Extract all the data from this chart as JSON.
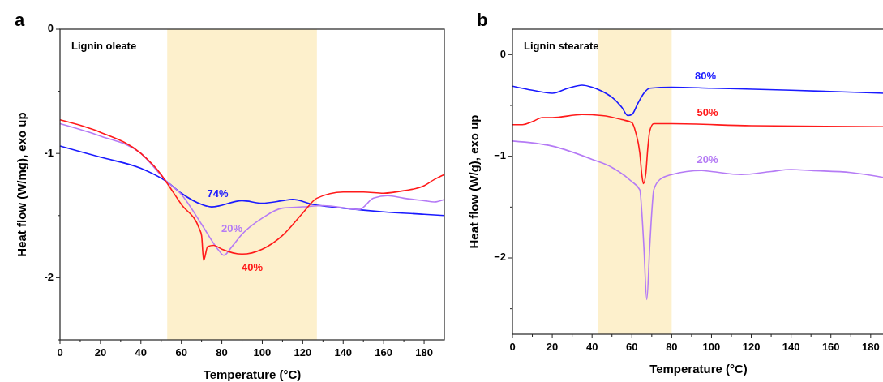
{
  "chart_data": [
    {
      "type": "line",
      "title": "Lignin oleate",
      "annotations": [
        "a"
      ],
      "xlabel": "Temperature (°C)",
      "ylabel": "Heat flow (W/mg), exo up",
      "xlim": [
        0,
        190
      ],
      "ylim": [
        -2.5,
        0
      ],
      "xticks": [
        0,
        {
          "value": 10,
          "label": null
        },
        20,
        {
          "value": 30,
          "label": null
        },
        40,
        {
          "value": 50,
          "label": null
        },
        60,
        {
          "value": 70,
          "label": null
        },
        80,
        {
          "value": 90,
          "label": null
        },
        100,
        {
          "value": 110,
          "label": null
        },
        120,
        {
          "value": 130,
          "label": null
        },
        140,
        {
          "value": 150,
          "label": null
        },
        160,
        {
          "value": 170,
          "label": null
        },
        180
      ],
      "yticks": [
        0,
        {
          "value": -0.5,
          "label": null
        },
        -1,
        {
          "value": -1.5,
          "label": null
        },
        -2,
        {
          "value": -2.5,
          "label": null
        }
      ],
      "bands": [
        {
          "axis": "x",
          "from": 53,
          "to": 127,
          "color": "#fdf0cc"
        }
      ],
      "series": [
        {
          "name": "74%",
          "color": "#1a1aff",
          "x": [
            0,
            20,
            40,
            53,
            60,
            70,
            75,
            90,
            100,
            110,
            115,
            125,
            140,
            160,
            180,
            190
          ],
          "values": [
            -0.94,
            -1.03,
            -1.12,
            -1.23,
            -1.32,
            -1.41,
            -1.43,
            -1.38,
            -1.4,
            -1.38,
            -1.37,
            -1.41,
            -1.44,
            -1.47,
            -1.49,
            -1.5
          ]
        },
        {
          "name": "20%",
          "color": "#b57bf5",
          "x": [
            0,
            20,
            40,
            53,
            60,
            70,
            78,
            81,
            85,
            90,
            100,
            110,
            120,
            130,
            148,
            155,
            162,
            170,
            180,
            185,
            190
          ],
          "values": [
            -0.76,
            -0.86,
            -1.0,
            -1.23,
            -1.33,
            -1.57,
            -1.77,
            -1.82,
            -1.75,
            -1.65,
            -1.52,
            -1.44,
            -1.43,
            -1.42,
            -1.45,
            -1.36,
            -1.34,
            -1.36,
            -1.38,
            -1.39,
            -1.37
          ]
        },
        {
          "name": "40%",
          "color": "#ff1a1a",
          "x": [
            0,
            20,
            40,
            50,
            53,
            60,
            69,
            70,
            71,
            73,
            76,
            80,
            90,
            100,
            110,
            120,
            127,
            140,
            150,
            160,
            170,
            180,
            185,
            190
          ],
          "values": [
            -0.73,
            -0.83,
            -1.0,
            -1.17,
            -1.24,
            -1.41,
            -1.61,
            -1.66,
            -1.86,
            -1.75,
            -1.74,
            -1.77,
            -1.81,
            -1.77,
            -1.66,
            -1.48,
            -1.36,
            -1.31,
            -1.31,
            -1.32,
            -1.3,
            -1.26,
            -1.21,
            -1.17
          ]
        }
      ]
    },
    {
      "type": "line",
      "title": "Lignin stearate",
      "annotations": [
        "b"
      ],
      "xlabel": "Temperature (°C)",
      "ylabel": "Heat flow (W/g), exo up",
      "xlim": [
        0,
        187
      ],
      "ylim": [
        -2.75,
        0.25
      ],
      "xticks": [
        0,
        {
          "value": 10,
          "label": null
        },
        20,
        {
          "value": 30,
          "label": null
        },
        40,
        {
          "value": 50,
          "label": null
        },
        60,
        {
          "value": 70,
          "label": null
        },
        80,
        {
          "value": 90,
          "label": null
        },
        100,
        {
          "value": 110,
          "label": null
        },
        120,
        {
          "value": 130,
          "label": null
        },
        140,
        {
          "value": 150,
          "label": null
        },
        160,
        {
          "value": 170,
          "label": null
        },
        180
      ],
      "yticks": [
        0,
        {
          "value": -0.5,
          "label": null
        },
        {
          "value": -1,
          "label": "−1"
        },
        {
          "value": -1.5,
          "label": null
        },
        {
          "value": -2,
          "label": "−2"
        },
        {
          "value": -2.5,
          "label": null
        }
      ],
      "bands": [
        {
          "axis": "x",
          "from": 43,
          "to": 80,
          "color": "#fdf0cc"
        }
      ],
      "series": [
        {
          "name": "80%",
          "color": "#1a1aff",
          "x": [
            0,
            10,
            20,
            28,
            35,
            40,
            45,
            50,
            55,
            58,
            60,
            63,
            66,
            69,
            80,
            100,
            140,
            187
          ],
          "values": [
            -0.31,
            -0.35,
            -0.38,
            -0.33,
            -0.3,
            -0.32,
            -0.36,
            -0.42,
            -0.52,
            -0.6,
            -0.59,
            -0.48,
            -0.38,
            -0.33,
            -0.32,
            -0.33,
            -0.35,
            -0.38
          ]
        },
        {
          "name": "50%",
          "color": "#ff1a1a",
          "x": [
            0,
            5,
            10,
            15,
            20,
            35,
            45,
            55,
            60,
            62,
            64,
            65,
            65.8,
            67,
            68,
            69,
            71,
            80,
            120,
            187
          ],
          "values": [
            -0.69,
            -0.69,
            -0.66,
            -0.62,
            -0.62,
            -0.59,
            -0.6,
            -0.64,
            -0.67,
            -0.77,
            -0.97,
            -1.18,
            -1.27,
            -1.17,
            -0.92,
            -0.75,
            -0.68,
            -0.68,
            -0.7,
            -0.71
          ]
        },
        {
          "name": "20%",
          "color": "#b57bf5",
          "x": [
            0,
            20,
            40,
            50,
            60,
            64,
            65,
            66,
            67.5,
            69,
            70,
            71,
            74,
            80,
            95,
            100,
            115,
            130,
            140,
            150,
            170,
            187
          ],
          "values": [
            -0.85,
            -0.9,
            -1.03,
            -1.11,
            -1.25,
            -1.33,
            -1.55,
            -1.88,
            -2.41,
            -1.88,
            -1.55,
            -1.33,
            -1.23,
            -1.18,
            -1.14,
            -1.15,
            -1.18,
            -1.15,
            -1.13,
            -1.14,
            -1.16,
            -1.21
          ]
        }
      ]
    }
  ]
}
